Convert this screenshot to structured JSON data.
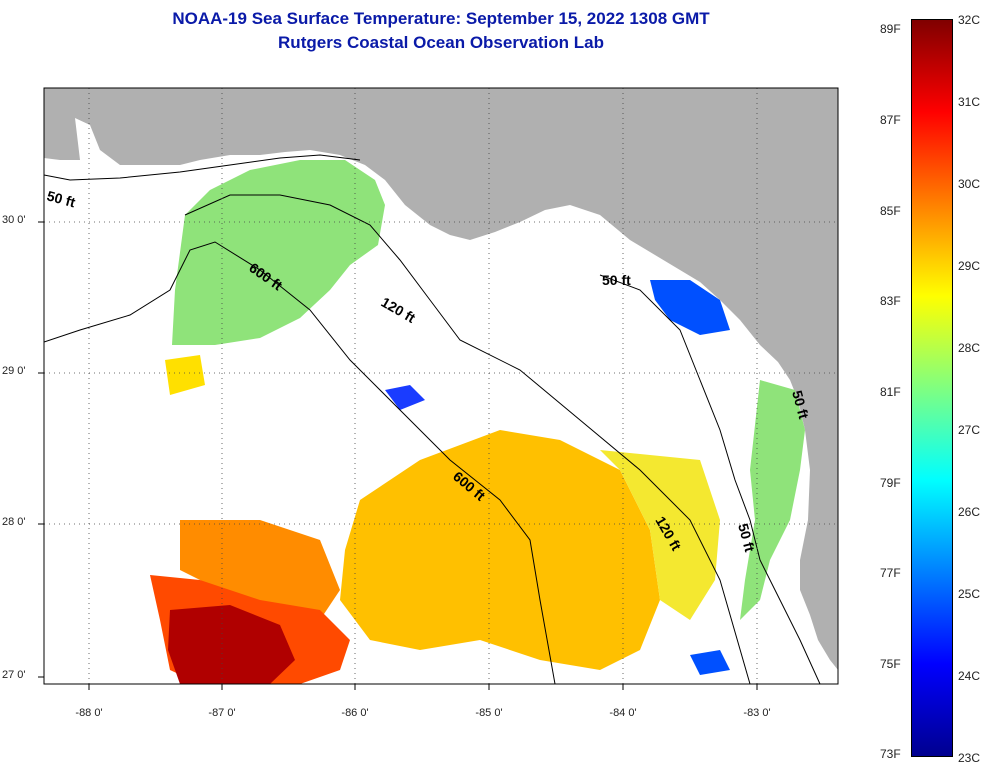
{
  "title": "NOAA-19 Sea Surface Temperature:  September 15, 2022 1308 GMT",
  "subtitle": "Rutgers Coastal Ocean Observation Lab",
  "lat_ticks": [
    "30 0'",
    "29 0'",
    "28 0'",
    "27 0'"
  ],
  "lon_ticks": [
    "-88 0'",
    "-87 0'",
    "-86 0'",
    "-85 0'",
    "-84 0'",
    "-83 0'"
  ],
  "contour_labels": [
    "50 ft",
    "600 ft",
    "120 ft",
    "50 ft",
    "600 ft",
    "120 ft",
    "50 ft",
    "50 ft"
  ],
  "colorbar": {
    "fahrenheit": [
      "89F",
      "87F",
      "85F",
      "83F",
      "81F",
      "79F",
      "77F",
      "75F",
      "73F"
    ],
    "celsius": [
      "32C",
      "31C",
      "30C",
      "29C",
      "28C",
      "27C",
      "26C",
      "25C",
      "24C",
      "23C"
    ],
    "colors": [
      "#00008f",
      "#0000ff",
      "#0080ff",
      "#00ffff",
      "#80ff80",
      "#ffff00",
      "#ff8000",
      "#ff0000",
      "#800000"
    ]
  },
  "colors": {
    "land": "#b0b0b0",
    "title": "#0a1aa8",
    "no_data": "#ffffff"
  }
}
